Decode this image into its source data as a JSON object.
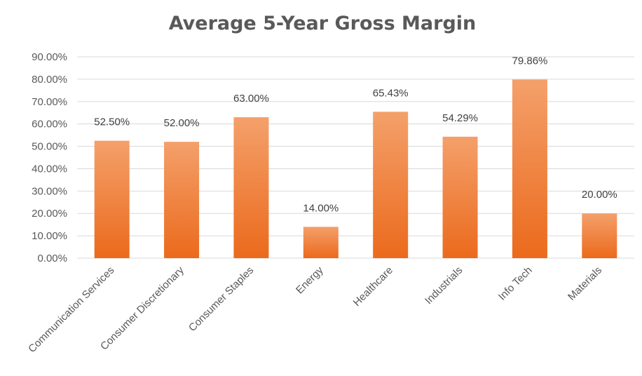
{
  "chart_data": {
    "type": "bar",
    "title": "Average 5-Year Gross Margin",
    "xlabel": "",
    "ylabel": "",
    "categories": [
      "Communication Services",
      "Consumer Discretionary",
      "Consumer Staples",
      "Energy",
      "Healthcare",
      "Industrials",
      "Info Tech",
      "Materials"
    ],
    "values": [
      52.5,
      52.0,
      63.0,
      14.0,
      65.43,
      54.29,
      79.86,
      20.0
    ],
    "value_labels": [
      "52.50%",
      "52.00%",
      "63.00%",
      "14.00%",
      "65.43%",
      "54.29%",
      "79.86%",
      "20.00%"
    ],
    "ylim": [
      0,
      90
    ],
    "yticks": [
      0,
      10,
      20,
      30,
      40,
      50,
      60,
      70,
      80,
      90
    ],
    "ytick_labels": [
      "0.00%",
      "10.00%",
      "20.00%",
      "30.00%",
      "40.00%",
      "50.00%",
      "60.00%",
      "70.00%",
      "80.00%",
      "90.00%"
    ],
    "grid": true,
    "legend": false,
    "colors": {
      "bar_top": "#f4a06b",
      "bar_bottom": "#eb6a1c",
      "grid": "#d9d9d9",
      "text": "#595959"
    }
  }
}
